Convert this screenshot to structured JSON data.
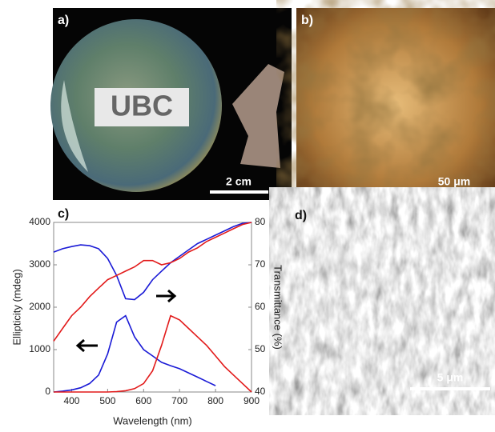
{
  "panels": {
    "a": {
      "label": "a)",
      "inset_text": "UBC",
      "scale_bar": "2 cm"
    },
    "b": {
      "label": "b)",
      "scale_bar": "50 μm"
    },
    "c": {
      "label": "c)"
    },
    "d": {
      "label": "d)",
      "scale_bar": "5 μm"
    }
  },
  "chart_data": {
    "type": "line",
    "xlabel": "Wavelength (nm)",
    "ylabel": "Ellipticity (mdeg)",
    "y2label": "Transmittance (%)",
    "x": [
      350,
      375,
      400,
      425,
      450,
      475,
      500,
      525,
      550,
      575,
      600,
      625,
      650,
      675,
      700,
      725,
      750,
      775,
      800,
      825,
      850,
      875,
      900
    ],
    "series": [
      {
        "color": "#1a1ad6",
        "values": [
          0,
          20,
          50,
          100,
          200,
          400,
          900,
          1650,
          1800,
          1300,
          1000,
          850,
          700,
          620,
          550,
          450,
          350,
          250,
          150,
          null,
          null,
          null,
          null
        ]
      },
      {
        "color": "#e21a1a",
        "values": [
          0,
          0,
          0,
          0,
          0,
          0,
          0,
          10,
          30,
          80,
          200,
          500,
          1100,
          1800,
          1700,
          1500,
          1300,
          1100,
          850,
          600,
          400,
          200,
          0
        ]
      },
      {
        "color": "#1a1ad6",
        "axis": "y2",
        "values": [
          73,
          73.8,
          74.3,
          74.7,
          74.5,
          73.8,
          71.5,
          67.5,
          62,
          61.8,
          63.5,
          66.5,
          68.5,
          70.5,
          72,
          73.5,
          75,
          76,
          77,
          78,
          79,
          79.8,
          80
        ]
      },
      {
        "color": "#e21a1a",
        "axis": "y2",
        "values": [
          52,
          55,
          58,
          60,
          62.5,
          64.5,
          66.5,
          67.5,
          68.5,
          69.5,
          71,
          71,
          70,
          70.5,
          71.5,
          73,
          74,
          75.5,
          76.5,
          77.5,
          78.5,
          79.5,
          80
        ]
      }
    ],
    "xlim": [
      350,
      900
    ],
    "xticks": [
      400,
      500,
      600,
      700,
      800,
      900
    ],
    "ylim": [
      0,
      4000
    ],
    "yticks": [
      0,
      1000,
      2000,
      3000,
      4000
    ],
    "y2lim": [
      40,
      80
    ],
    "y2ticks": [
      40,
      50,
      60,
      70,
      80
    ]
  }
}
